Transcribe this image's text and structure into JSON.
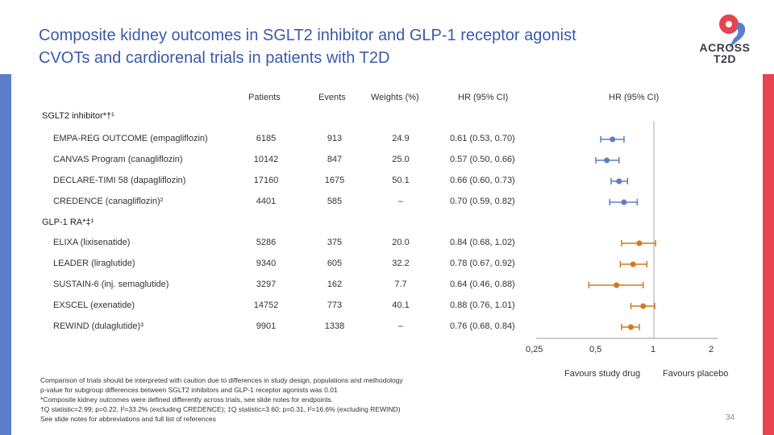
{
  "title_line1": "Composite kidney outcomes in SGLT2 inhibitor and GLP-1 receptor agonist",
  "title_line2": "CVOTs and cardiorenal trials in patients with T2D",
  "logo": {
    "line1": "ACROSS",
    "line2": "T2D"
  },
  "headers": {
    "patients": "Patients",
    "events": "Events",
    "weights": "Weights (%)",
    "hr1": "HR (95% CI)",
    "hr2": "HR (95% CI)"
  },
  "groups": {
    "sglt2": "SGLT2 inhibitor*†¹",
    "glp1": "GLP-1 RA*‡¹"
  },
  "colors": {
    "sglt2": "#5b7ec8",
    "glp1": "#d4781e",
    "left_bar": "#5b7ec8",
    "right_bar": "#e8434f",
    "title": "#3a5aa8"
  },
  "chart_data": {
    "type": "forest",
    "x_scale": "log",
    "x_ticks": [
      "0,25",
      "0,5",
      "1",
      "2"
    ],
    "x_tick_values": [
      0.25,
      0.5,
      1,
      2
    ],
    "favours_left": "Favours study drug",
    "favours_right": "Favours placebo",
    "sglt2_trials": [
      {
        "name": "EMPA-REG OUTCOME (empagliflozin)",
        "patients": "6185",
        "events": "913",
        "weight": "24.9",
        "ci_text": "0.61 (0.53, 0.70)",
        "hr": 0.61,
        "lo": 0.53,
        "hi": 0.7
      },
      {
        "name": "CANVAS Program (canagliflozin)",
        "patients": "10142",
        "events": "847",
        "weight": "25.0",
        "ci_text": "0.57 (0.50, 0.66)",
        "hr": 0.57,
        "lo": 0.5,
        "hi": 0.66
      },
      {
        "name": "DECLARE-TIMI 58 (dapagliflozin)",
        "patients": "17160",
        "events": "1675",
        "weight": "50.1",
        "ci_text": "0.66 (0.60, 0.73)",
        "hr": 0.66,
        "lo": 0.6,
        "hi": 0.73
      },
      {
        "name": "CREDENCE (canagliflozin)²",
        "patients": "4401",
        "events": "585",
        "weight": "–",
        "ci_text": "0.70 (0.59, 0.82)",
        "hr": 0.7,
        "lo": 0.59,
        "hi": 0.82
      }
    ],
    "glp1_trials": [
      {
        "name": "ELIXA (lixisenatide)",
        "patients": "5286",
        "events": "375",
        "weight": "20.0",
        "ci_text": "0.84 (0.68, 1.02)",
        "hr": 0.84,
        "lo": 0.68,
        "hi": 1.02
      },
      {
        "name": "LEADER (liraglutide)",
        "patients": "9340",
        "events": "605",
        "weight": "32.2",
        "ci_text": "0.78 (0.67, 0.92)",
        "hr": 0.78,
        "lo": 0.67,
        "hi": 0.92
      },
      {
        "name": "SUSTAIN-6 (inj. semaglutide)",
        "patients": "3297",
        "events": "162",
        "weight": "7.7",
        "ci_text": "0.64 (0.46, 0.88)",
        "hr": 0.64,
        "lo": 0.46,
        "hi": 0.88
      },
      {
        "name": "EXSCEL (exenatide)",
        "patients": "14752",
        "events": "773",
        "weight": "40.1",
        "ci_text": "0.88 (0.76, 1.01)",
        "hr": 0.88,
        "lo": 0.76,
        "hi": 1.01
      },
      {
        "name": "REWIND (dulaglutide)³",
        "patients": "9901",
        "events": "1338",
        "weight": "–",
        "ci_text": "0.76 (0.68, 0.84)",
        "hr": 0.76,
        "lo": 0.68,
        "hi": 0.84
      }
    ]
  },
  "footnotes": {
    "line1": "Comparison of trials should be interpreted with caution due to differences in study design, populations and methodology",
    "line2": "p-value for subgroup differences between SGLT2 inhibitors and GLP-1 receptor agonists was 0.01",
    "line3": "*Composite kidney outcomes were defined differently across trials, see slide notes for endpoints.",
    "line4": "†Q statistic=2.99; p=0.22, I²=33.2% (excluding CREDENCE); ‡Q statistic=3.60; p=0.31, I²=16.6% (excluding REWIND)",
    "line5": "See slide notes for abbreviations and full list of references"
  },
  "page_number": "34"
}
